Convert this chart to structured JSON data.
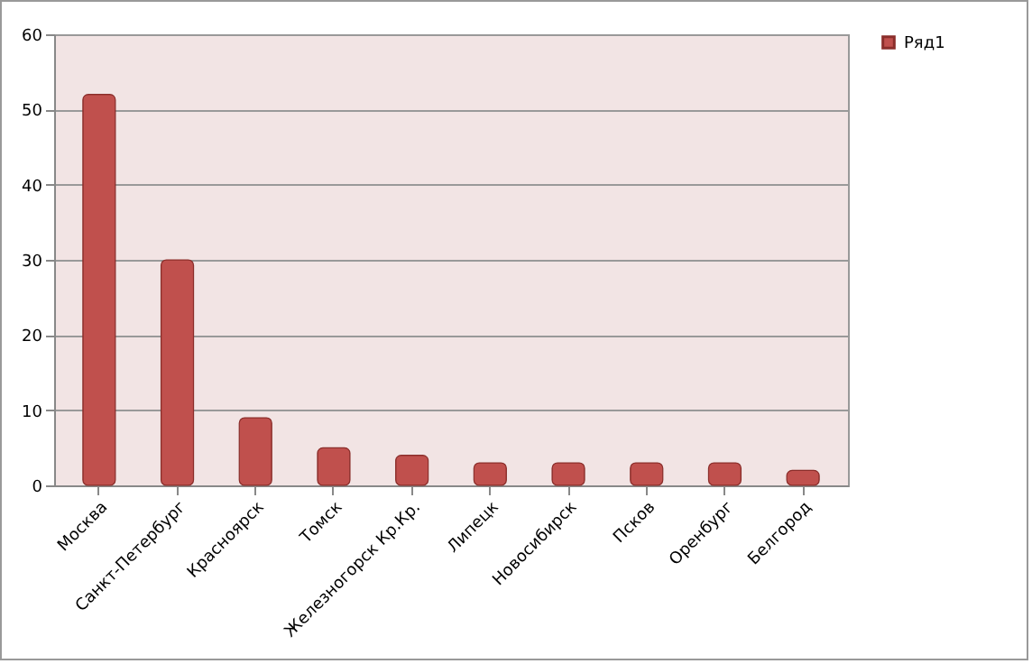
{
  "chart_data": {
    "type": "bar",
    "categories": [
      "Москва",
      "Санкт-Петербург",
      "Красноярск",
      "Томск",
      "Железногорск  Кр.Кр.",
      "Липецк",
      "Новосибирск",
      "Псков",
      "Оренбург",
      "Белгород"
    ],
    "series": [
      {
        "name": "Ряд1",
        "color": "#c0504d",
        "values": [
          52,
          30,
          9,
          5,
          4,
          3,
          3,
          3,
          3,
          2
        ]
      }
    ],
    "ylim": [
      0,
      60
    ],
    "yticks": [
      0,
      10,
      20,
      30,
      40,
      50,
      60
    ],
    "grid": "y",
    "legend": "right"
  }
}
